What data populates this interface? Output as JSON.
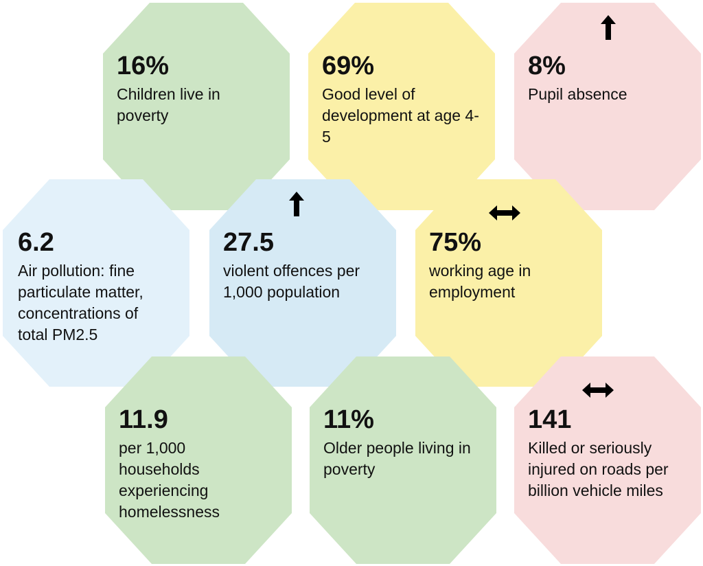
{
  "colors": {
    "green": "#cde5c5",
    "yellow": "#fbf0a8",
    "pink": "#f8dcdc",
    "lightblue": "#e3f1fa",
    "blue": "#d6eaf5",
    "arrow": "#000000"
  },
  "tiles": [
    {
      "value": "16%",
      "label": "Children live in poverty",
      "color": "green",
      "trend": "none"
    },
    {
      "value": "69%",
      "label": "Good level of development at age 4-5",
      "color": "yellow",
      "trend": "none"
    },
    {
      "value": "8%",
      "label": "Pupil absence",
      "color": "pink",
      "trend": "up-arrow-icon"
    },
    {
      "value": "6.2",
      "label": "Air pollution: fine particulate matter, concentrations of total PM2.5",
      "color": "lightblue",
      "trend": "none"
    },
    {
      "value": "27.5",
      "label": "violent offences per 1,000 population",
      "color": "blue",
      "trend": "up-arrow-icon"
    },
    {
      "value": "75%",
      "label": "working age in employment",
      "color": "yellow",
      "trend": "left-right-arrow-icon"
    },
    {
      "value": "11.9",
      "label": "per 1,000 households experiencing homelessness",
      "color": "green",
      "trend": "none"
    },
    {
      "value": "11%",
      "label": "Older people living in poverty",
      "color": "green",
      "trend": "none"
    },
    {
      "value": "141",
      "label": "Killed or seriously injured on roads per billion vehicle miles",
      "color": "pink",
      "trend": "left-right-arrow-icon"
    }
  ]
}
